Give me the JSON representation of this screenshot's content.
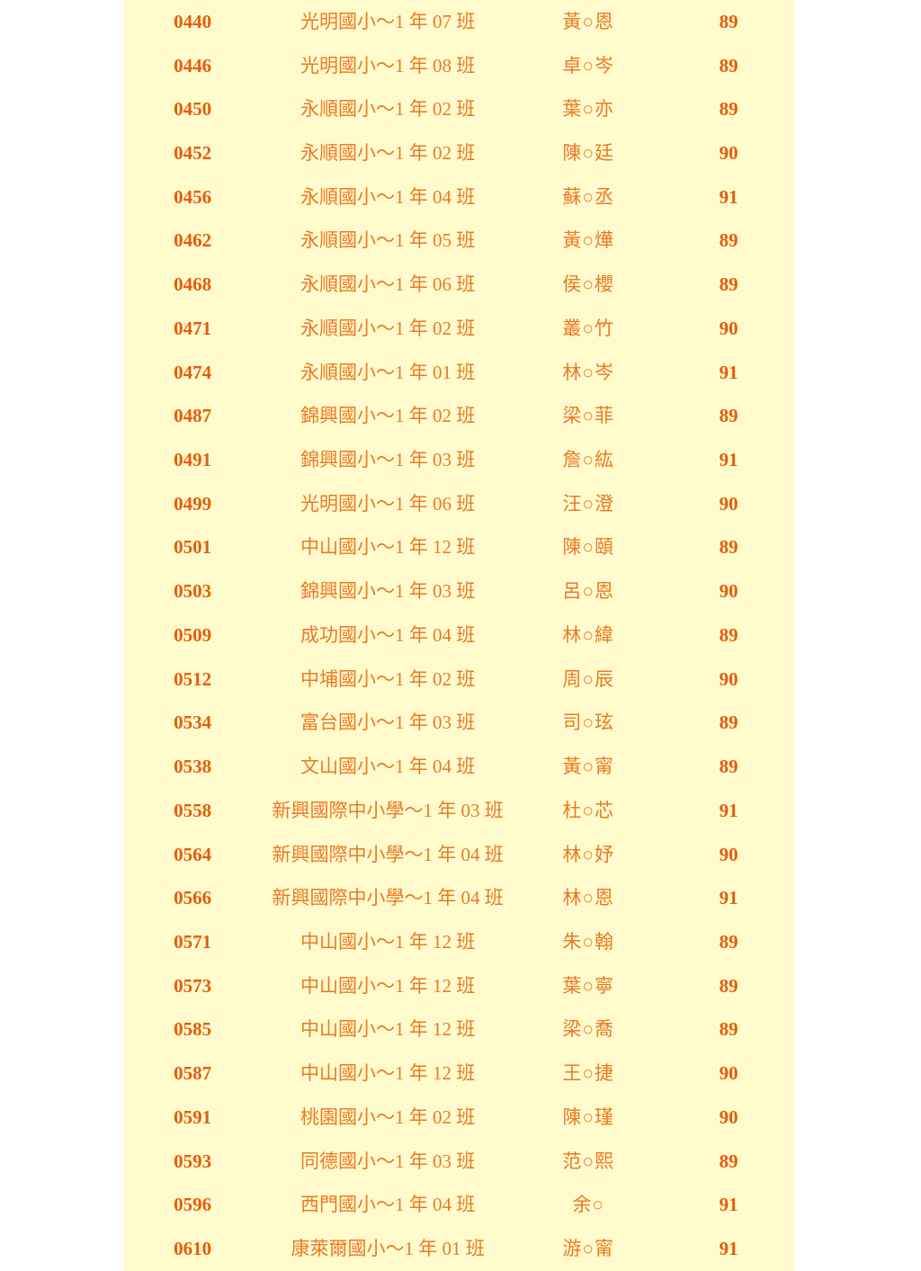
{
  "colors": {
    "page_background": "#ffffff",
    "panel_background": "#fffbcc",
    "number_text": "#e65c0c",
    "cjk_text": "#ea7a28"
  },
  "table": {
    "columns": [
      "entry_number",
      "school_class",
      "student_name",
      "score"
    ],
    "rows": [
      {
        "id": "0440",
        "school_class": "光明國小～1 年 07 班",
        "name": "黃○恩",
        "score": "89"
      },
      {
        "id": "0446",
        "school_class": "光明國小～1 年 08 班",
        "name": "卓○岑",
        "score": "89"
      },
      {
        "id": "0450",
        "school_class": "永順國小～1 年 02 班",
        "name": "葉○亦",
        "score": "89"
      },
      {
        "id": "0452",
        "school_class": "永順國小～1 年 02 班",
        "name": "陳○廷",
        "score": "90"
      },
      {
        "id": "0456",
        "school_class": "永順國小～1 年 04 班",
        "name": "蘇○丞",
        "score": "91"
      },
      {
        "id": "0462",
        "school_class": "永順國小～1 年 05 班",
        "name": "黃○燁",
        "score": "89"
      },
      {
        "id": "0468",
        "school_class": "永順國小～1 年 06 班",
        "name": "侯○櫻",
        "score": "89"
      },
      {
        "id": "0471",
        "school_class": "永順國小～1 年 02 班",
        "name": "叢○竹",
        "score": "90"
      },
      {
        "id": "0474",
        "school_class": "永順國小～1 年 01 班",
        "name": "林○岑",
        "score": "91"
      },
      {
        "id": "0487",
        "school_class": "錦興國小～1 年 02 班",
        "name": "梁○菲",
        "score": "89"
      },
      {
        "id": "0491",
        "school_class": "錦興國小～1 年 03 班",
        "name": "詹○紘",
        "score": "91"
      },
      {
        "id": "0499",
        "school_class": "光明國小～1 年 06 班",
        "name": "汪○澄",
        "score": "90"
      },
      {
        "id": "0501",
        "school_class": "中山國小～1 年 12 班",
        "name": "陳○頤",
        "score": "89"
      },
      {
        "id": "0503",
        "school_class": "錦興國小～1 年 03 班",
        "name": "呂○恩",
        "score": "90"
      },
      {
        "id": "0509",
        "school_class": "成功國小～1 年 04 班",
        "name": "林○緯",
        "score": "89"
      },
      {
        "id": "0512",
        "school_class": "中埔國小～1 年 02 班",
        "name": "周○辰",
        "score": "90"
      },
      {
        "id": "0534",
        "school_class": "富台國小～1 年 03 班",
        "name": "司○玹",
        "score": "89"
      },
      {
        "id": "0538",
        "school_class": "文山國小～1 年 04 班",
        "name": "黃○甯",
        "score": "89"
      },
      {
        "id": "0558",
        "school_class": "新興國際中小學～1 年 03 班",
        "name": "杜○芯",
        "score": "91"
      },
      {
        "id": "0564",
        "school_class": "新興國際中小學～1 年 04 班",
        "name": "林○妤",
        "score": "90"
      },
      {
        "id": "0566",
        "school_class": "新興國際中小學～1 年 04 班",
        "name": "林○恩",
        "score": "91"
      },
      {
        "id": "0571",
        "school_class": "中山國小～1 年 12 班",
        "name": "朱○翰",
        "score": "89"
      },
      {
        "id": "0573",
        "school_class": "中山國小～1 年 12 班",
        "name": "葉○寧",
        "score": "89"
      },
      {
        "id": "0585",
        "school_class": "中山國小～1 年 12 班",
        "name": "梁○喬",
        "score": "89"
      },
      {
        "id": "0587",
        "school_class": "中山國小～1 年 12 班",
        "name": "王○捷",
        "score": "90"
      },
      {
        "id": "0591",
        "school_class": "桃園國小～1 年 02 班",
        "name": "陳○瑾",
        "score": "90"
      },
      {
        "id": "0593",
        "school_class": "同德國小～1 年 03 班",
        "name": "范○熙",
        "score": "89"
      },
      {
        "id": "0596",
        "school_class": "西門國小～1 年 04 班",
        "name": "余○",
        "score": "91"
      },
      {
        "id": "0610",
        "school_class": "康萊爾國小～1 年 01 班",
        "name": "游○甯",
        "score": "91"
      }
    ]
  }
}
